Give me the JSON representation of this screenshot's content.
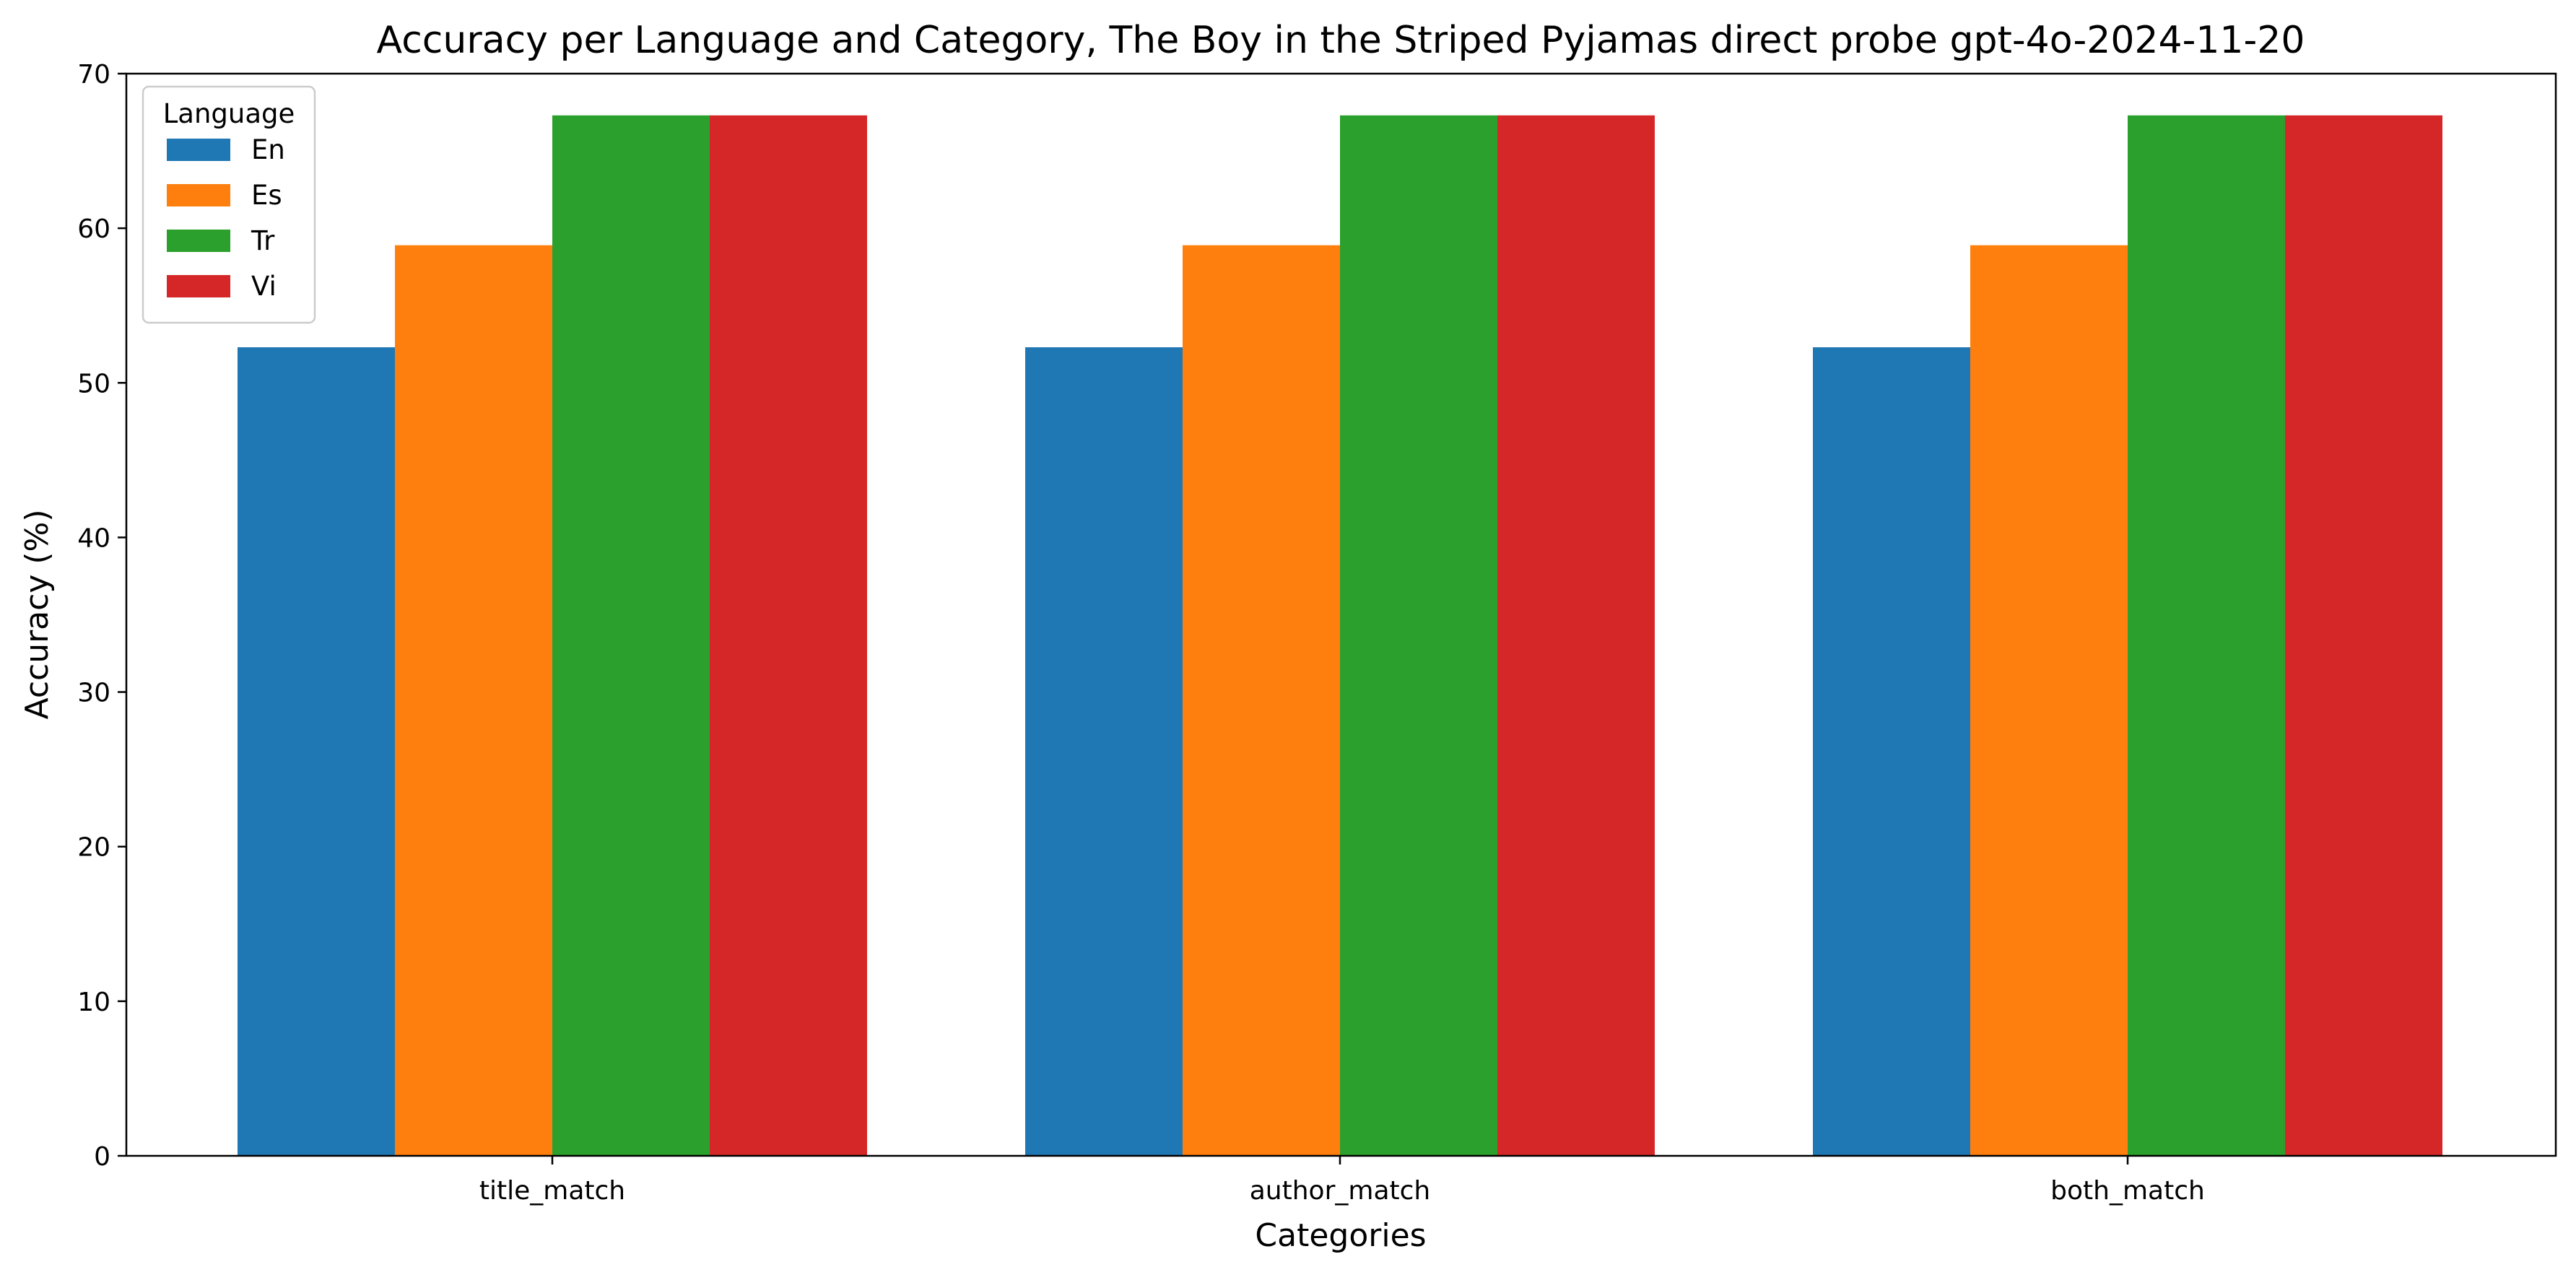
{
  "chart_data": {
    "type": "bar",
    "title": "Accuracy per Language and Category, The Boy in the Striped Pyjamas direct probe gpt-4o-2024-11-20",
    "xlabel": "Categories",
    "ylabel": "Accuracy (%)",
    "categories": [
      "title_match",
      "author_match",
      "both_match"
    ],
    "ylim": [
      0,
      70
    ],
    "yticks": [
      0,
      10,
      20,
      30,
      40,
      50,
      60,
      70
    ],
    "grid": false,
    "legend": {
      "title": "Language",
      "placement": "top-left"
    },
    "series": [
      {
        "name": "En",
        "color": "#1f77b4",
        "values": [
          52.3,
          52.3,
          52.3
        ]
      },
      {
        "name": "Es",
        "color": "#ff7f0e",
        "values": [
          58.9,
          58.9,
          58.9
        ]
      },
      {
        "name": "Tr",
        "color": "#2ca02c",
        "values": [
          67.3,
          67.3,
          67.3
        ]
      },
      {
        "name": "Vi",
        "color": "#d62728",
        "values": [
          67.3,
          67.3,
          67.3
        ]
      }
    ]
  }
}
